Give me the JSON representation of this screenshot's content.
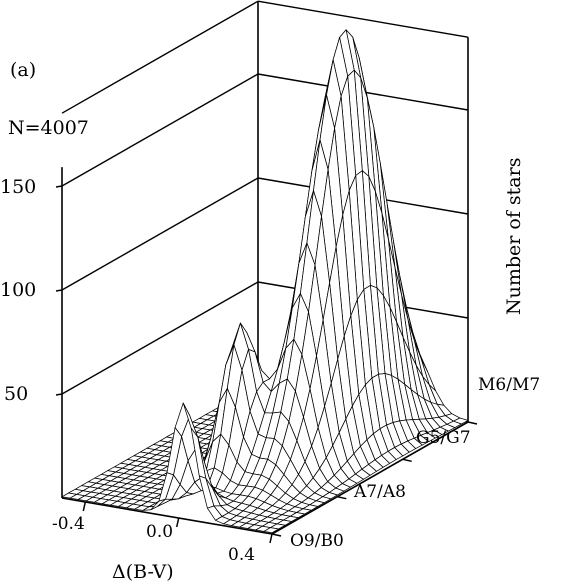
{
  "chart_data": {
    "type": "surface3d",
    "panel_label": "(a)",
    "annotation": "N=4007",
    "xlabel": "Δ(B-V)",
    "ylabel": "",
    "zlabel": "Number of stars",
    "x_ticks": [
      "-0.4",
      "0.0",
      "0.4"
    ],
    "x_range": [
      -0.5,
      0.4
    ],
    "y_ticks": [
      "O9/B0",
      "A7/A8",
      "G5/G7",
      "M6/M7"
    ],
    "z_ticks": [
      "50",
      "100",
      "150"
    ],
    "z_range": [
      0,
      185
    ],
    "peaks": [
      {
        "x": 0.15,
        "y": "G5/G7",
        "z": 180
      },
      {
        "x": -0.02,
        "y": "A7/A8",
        "z": 72
      },
      {
        "x": 0.02,
        "y": "O9/B0",
        "z": 55
      }
    ]
  }
}
